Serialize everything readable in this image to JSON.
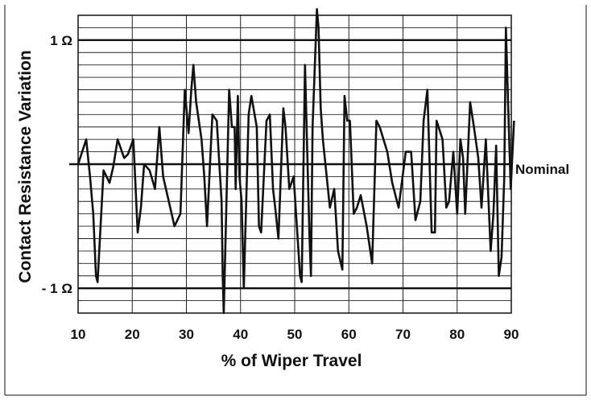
{
  "chart_data": {
    "type": "line",
    "xlabel": "% of Wiper Travel",
    "ylabel": "Contact Resistance Variation",
    "xlim": [
      10,
      90
    ],
    "ylim": [
      -1.2,
      1.2
    ],
    "x_ticks": [
      10,
      20,
      30,
      40,
      50,
      60,
      70,
      80,
      90
    ],
    "x_tick_labels": [
      "10",
      "20",
      "30",
      "40",
      "50",
      "60",
      "70",
      "80",
      "90"
    ],
    "y_tick_labels": [
      {
        "value": 1,
        "label": "1 Ω"
      },
      {
        "value": -1,
        "label": "- 1 Ω"
      }
    ],
    "reference_line": {
      "value": 0,
      "label": "Nominal"
    },
    "grid": true,
    "colors": {
      "line": "#111111",
      "grid": "#222222",
      "background": "#ffffff"
    },
    "series": [
      {
        "x": [
          10,
          11.5,
          12.2,
          12.8,
          13.3,
          13.6,
          14.7,
          15.8,
          16.5,
          17.3,
          18.5,
          19.2,
          20.2,
          21.0,
          21.6,
          22.2,
          23.2,
          24.2,
          25.0,
          25.7,
          27.8,
          28.9,
          29.7,
          30.4,
          30.9,
          31.3,
          31.8,
          32.8,
          33.3,
          33.8,
          34.8,
          35.6,
          36.5,
          36.7,
          36.9,
          37.9,
          38.4,
          38.9,
          39.1,
          39.5,
          39.8,
          40.2,
          40.6,
          41.5,
          42.0,
          43.0,
          43.4,
          43.8,
          44.8,
          45.4,
          46.0,
          46.4,
          47.0,
          47.9,
          48.3,
          49.0,
          49.8,
          51.0,
          51.3,
          51.9,
          52.2,
          52.7,
          53.0,
          53.3,
          54.1,
          54.4,
          54.8,
          55.2,
          56.5,
          57.3,
          58.0,
          58.8,
          59.2,
          59.7,
          60.2,
          60.9,
          61.5,
          62.2,
          63.3,
          64.3,
          65.1,
          65.7,
          66.4,
          67.1,
          68.0,
          69.2,
          70.5,
          71.5,
          72.3,
          73.2,
          73.8,
          74.5,
          75.3,
          75.9,
          76.2,
          77.3,
          78.0,
          78.5,
          79.3,
          80.0,
          80.6,
          81.1,
          81.5,
          82.4,
          83.1,
          83.9,
          84.5,
          85.3,
          86.2,
          86.7,
          87.2,
          87.7,
          88.2,
          88.7,
          89.0,
          89.3,
          89.9,
          90.5
        ],
        "y": [
          0,
          0.2,
          -0.1,
          -0.4,
          -0.9,
          -0.95,
          -0.05,
          -0.15,
          -0.02,
          0.2,
          0.05,
          0.08,
          0.2,
          -0.55,
          -0.35,
          0,
          -0.05,
          -0.2,
          0.3,
          -0.1,
          -0.5,
          -0.4,
          0.6,
          0.25,
          0.6,
          0.8,
          0.5,
          0.2,
          -0.1,
          -0.5,
          0.4,
          0.35,
          -0.3,
          -0.9,
          -1.2,
          0.6,
          0.3,
          0.3,
          -0.2,
          0.55,
          -0.1,
          -0.3,
          -1.0,
          0.4,
          0.55,
          0.3,
          -0.5,
          -0.55,
          0.35,
          0.4,
          -0.2,
          -0.35,
          -0.6,
          0.45,
          0.3,
          -0.2,
          -0.1,
          -0.9,
          -0.95,
          0.8,
          0.3,
          -0.55,
          -0.9,
          0.3,
          1.25,
          1.1,
          0.45,
          0.2,
          -0.35,
          -0.2,
          -0.7,
          -0.85,
          0.55,
          0.35,
          0.35,
          -0.4,
          -0.35,
          -0.25,
          -0.5,
          -0.8,
          0.35,
          0.3,
          0.2,
          0.1,
          -0.15,
          -0.35,
          0.1,
          0.1,
          -0.45,
          -0.3,
          0.35,
          0.6,
          -0.55,
          -0.55,
          0.35,
          0.2,
          -0.35,
          -0.3,
          0.1,
          -0.4,
          0.2,
          0.05,
          -0.4,
          0.5,
          0.3,
          0.05,
          -0.35,
          0.2,
          -0.7,
          -0.4,
          0.15,
          -0.9,
          -0.75,
          -0.1,
          1.1,
          0.65,
          -0.2,
          0.35
        ]
      }
    ]
  }
}
